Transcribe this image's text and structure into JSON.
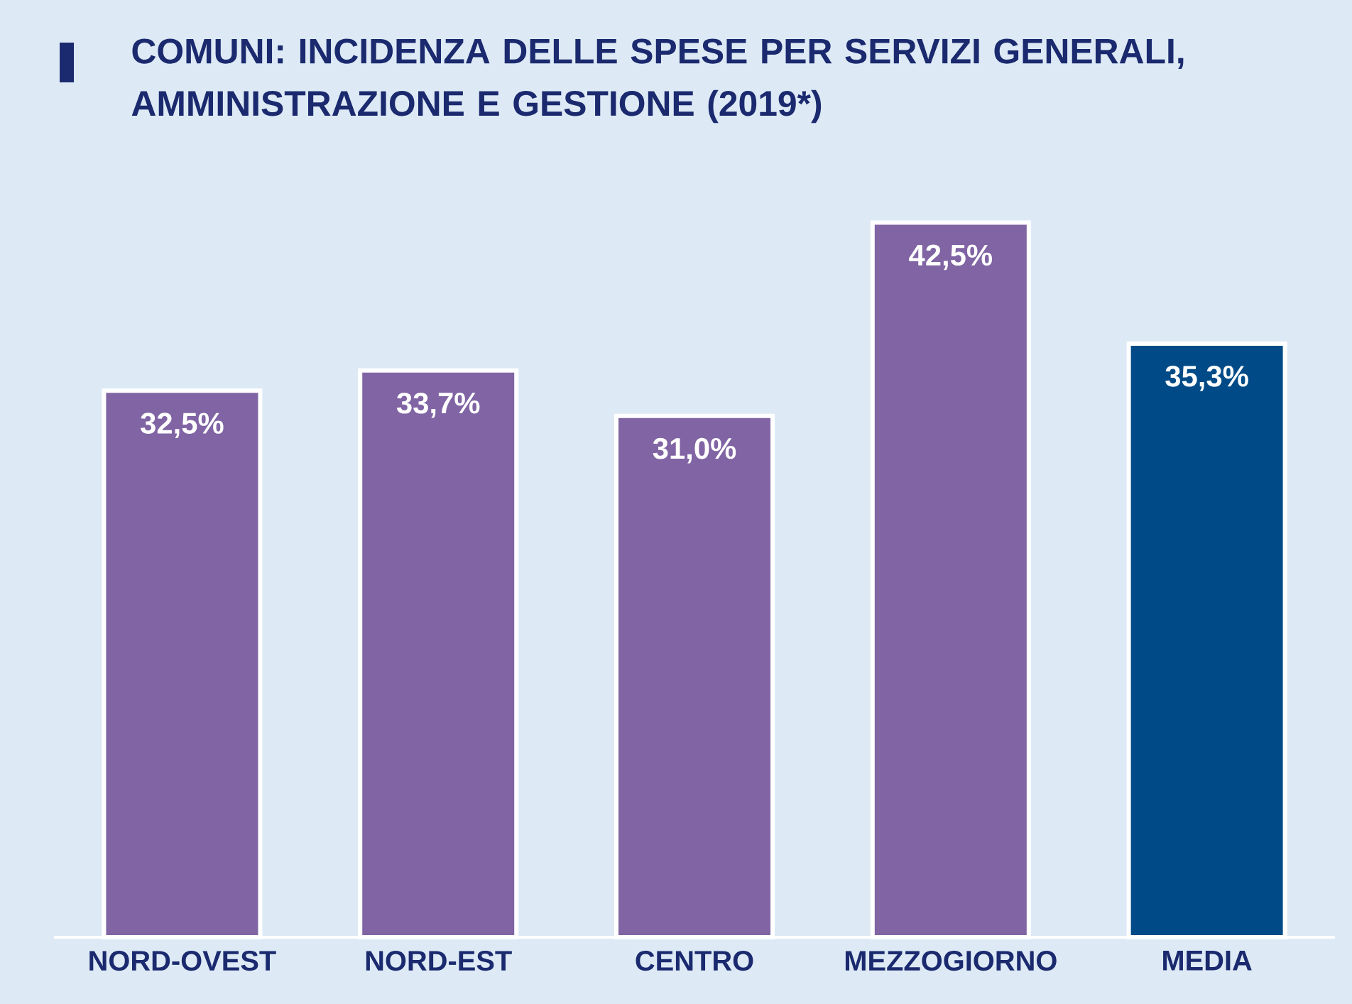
{
  "chart_data": {
    "type": "bar",
    "title": "COMUNI: INCIDENZA DELLE SPESE PER SERVIZI GENERALI, AMMINISTRAZIONE E GESTIONE (2019*)",
    "categories": [
      "NORD-OVEST",
      "NORD-EST",
      "CENTRO",
      "MEZZOGIORNO",
      "MEDIA"
    ],
    "values": [
      32.5,
      33.7,
      31.0,
      42.5,
      35.3
    ],
    "colors": [
      "#8064a4",
      "#8064a4",
      "#8064a4",
      "#8064a4",
      "#004b87"
    ],
    "value_labels": [
      "32,5%",
      "33,7%",
      "31,0%",
      "42,5%",
      "35,3%"
    ]
  }
}
